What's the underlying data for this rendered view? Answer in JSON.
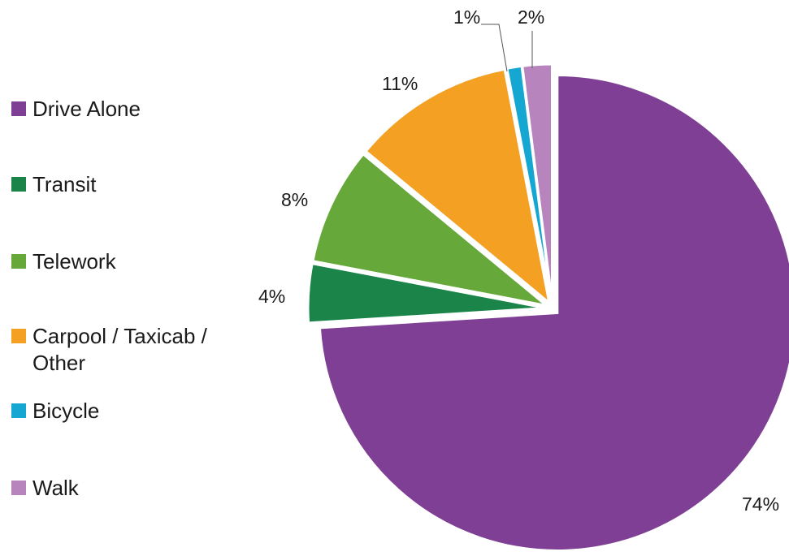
{
  "chart_data": {
    "type": "pie",
    "title": "",
    "legend_position": "left",
    "slices": [
      {
        "label": "Drive Alone",
        "value": 74,
        "display": "74%",
        "color": "#7e3f94"
      },
      {
        "label": "Transit",
        "value": 4,
        "display": "4%",
        "color": "#1a8449"
      },
      {
        "label": "Telework",
        "value": 8,
        "display": "8%",
        "color": "#66a83a"
      },
      {
        "label": "Carpool / Taxicab / Other",
        "value": 11,
        "display": "11%",
        "color": "#f3a023"
      },
      {
        "label": "Bicycle",
        "value": 1,
        "display": "1%",
        "color": "#15a6d1"
      },
      {
        "label": "Walk",
        "value": 2,
        "display": "2%",
        "color": "#b784bd"
      }
    ]
  }
}
